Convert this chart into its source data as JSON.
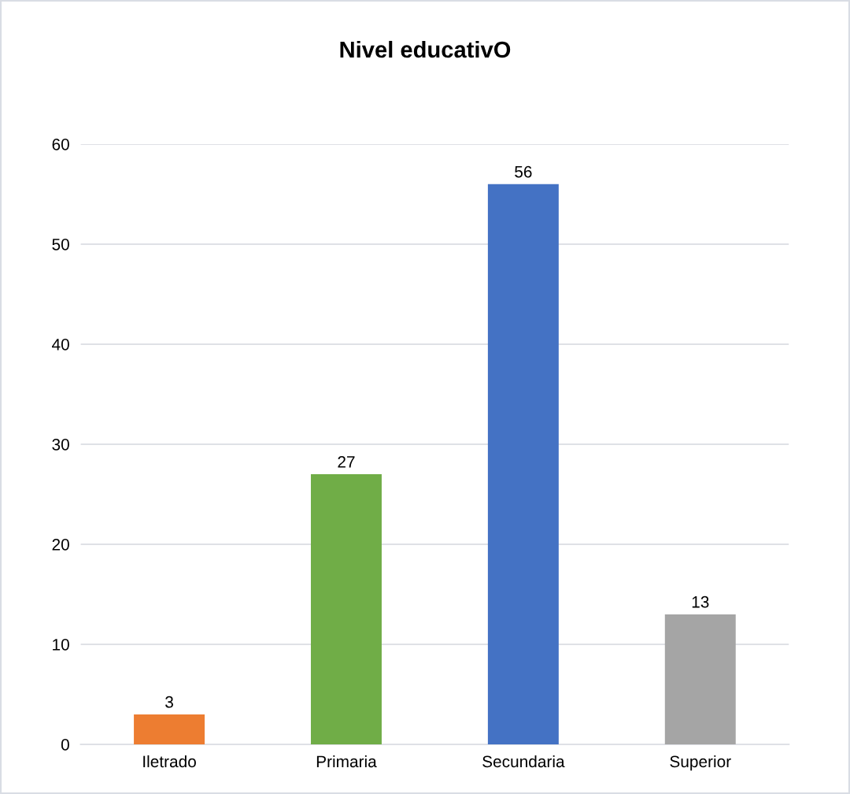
{
  "chart_data": {
    "type": "bar",
    "title": "Nivel educativO",
    "categories": [
      "Iletrado",
      "Primaria",
      "Secundaria",
      "Superior"
    ],
    "values": [
      3,
      27,
      56,
      13
    ],
    "colors": [
      "#ed7d31",
      "#70ad47",
      "#4472c4",
      "#a5a5a5"
    ],
    "ylim": [
      0,
      60
    ],
    "yticks": [
      0,
      10,
      20,
      30,
      40,
      50,
      60
    ],
    "grid": "y",
    "data_labels": true,
    "legend": false
  }
}
